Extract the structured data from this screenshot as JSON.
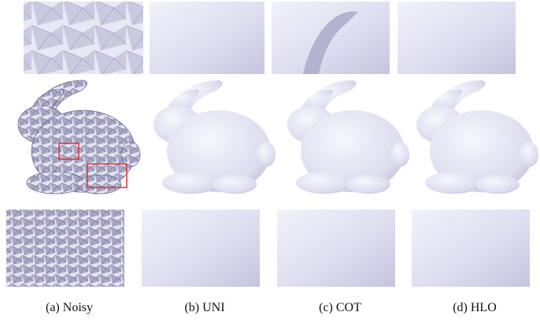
{
  "figure": {
    "captions": [
      "(a) Noisy",
      "(b) UNI",
      "(c) COT",
      "(d) HLO"
    ]
  }
}
